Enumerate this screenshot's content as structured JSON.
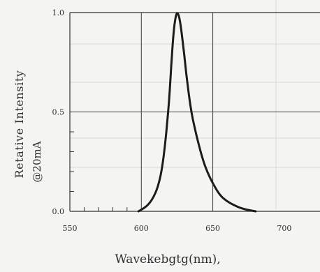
{
  "chart_data": {
    "type": "line",
    "title": "",
    "xlabel": "Wavekebgtg(nm),",
    "ylabel": "Retative Intensity",
    "ylabel_sub": "@20mA",
    "xlim": [
      550,
      700
    ],
    "ylim": [
      0.0,
      1.0
    ],
    "x_ticks": [
      550,
      600,
      650,
      700
    ],
    "x_tick_labels": [
      "550",
      "600",
      "650",
      "700"
    ],
    "y_ticks": [
      0.0,
      0.5,
      1.0
    ],
    "y_tick_labels": [
      "0.0",
      "0.5",
      "1.0"
    ],
    "grid": true,
    "series": [
      {
        "x": [
          598,
          605,
          610,
          613,
          615,
          617,
          619,
          620,
          621,
          622,
          623,
          624,
          625,
          626,
          627,
          628,
          629,
          630,
          631,
          632,
          633,
          635,
          637,
          640,
          643,
          646,
          650,
          655,
          660,
          665,
          670,
          675,
          680
        ],
        "y": [
          0.0,
          0.03,
          0.09,
          0.16,
          0.24,
          0.36,
          0.52,
          0.62,
          0.74,
          0.85,
          0.93,
          0.98,
          1.0,
          0.99,
          0.96,
          0.91,
          0.85,
          0.79,
          0.72,
          0.66,
          0.6,
          0.5,
          0.43,
          0.34,
          0.26,
          0.2,
          0.14,
          0.08,
          0.05,
          0.03,
          0.015,
          0.006,
          0.0
        ]
      }
    ]
  }
}
